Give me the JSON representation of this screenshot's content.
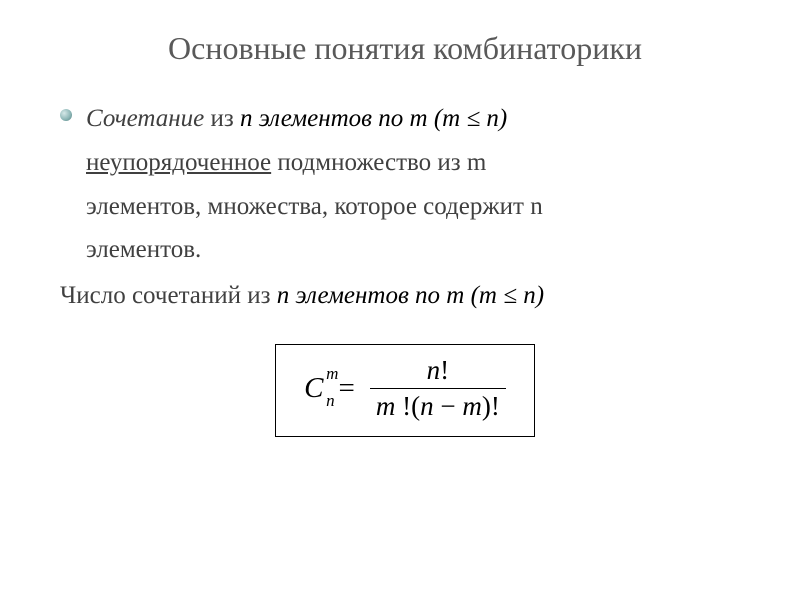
{
  "title": "Основные понятия комбинаторики",
  "bullet": {
    "lead": "Сочетание",
    "lead_rest": " из ",
    "inline1": "n элементов по m (m ≤ n)",
    "line2a": "неупорядоченное",
    "line2b": " подмножество из ",
    "m": "m",
    "line3": " элементов, множества, которое содержит ",
    "n": "n",
    "line4": " элементов."
  },
  "second": {
    "prefix": "Число сочетаний из ",
    "inline2": "n элементов по m (m ≤ n)"
  },
  "formula": {
    "C": "C",
    "sup": "m",
    "sub": "n",
    "eq": "=",
    "num_n": "n",
    "num_excl": "!",
    "den_m": "m",
    "den_excl1": " !",
    "den_open": "(",
    "den_nm_n": "n",
    "den_minus": " − ",
    "den_nm_m": "m",
    "den_close": ")",
    "den_excl2": "!"
  },
  "style": {
    "bg": "#ffffff",
    "title_color": "#595959",
    "body_color": "#404040",
    "border_color": "#000000",
    "title_fontsize": 32,
    "body_fontsize": 25,
    "formula_fontsize": 29
  }
}
